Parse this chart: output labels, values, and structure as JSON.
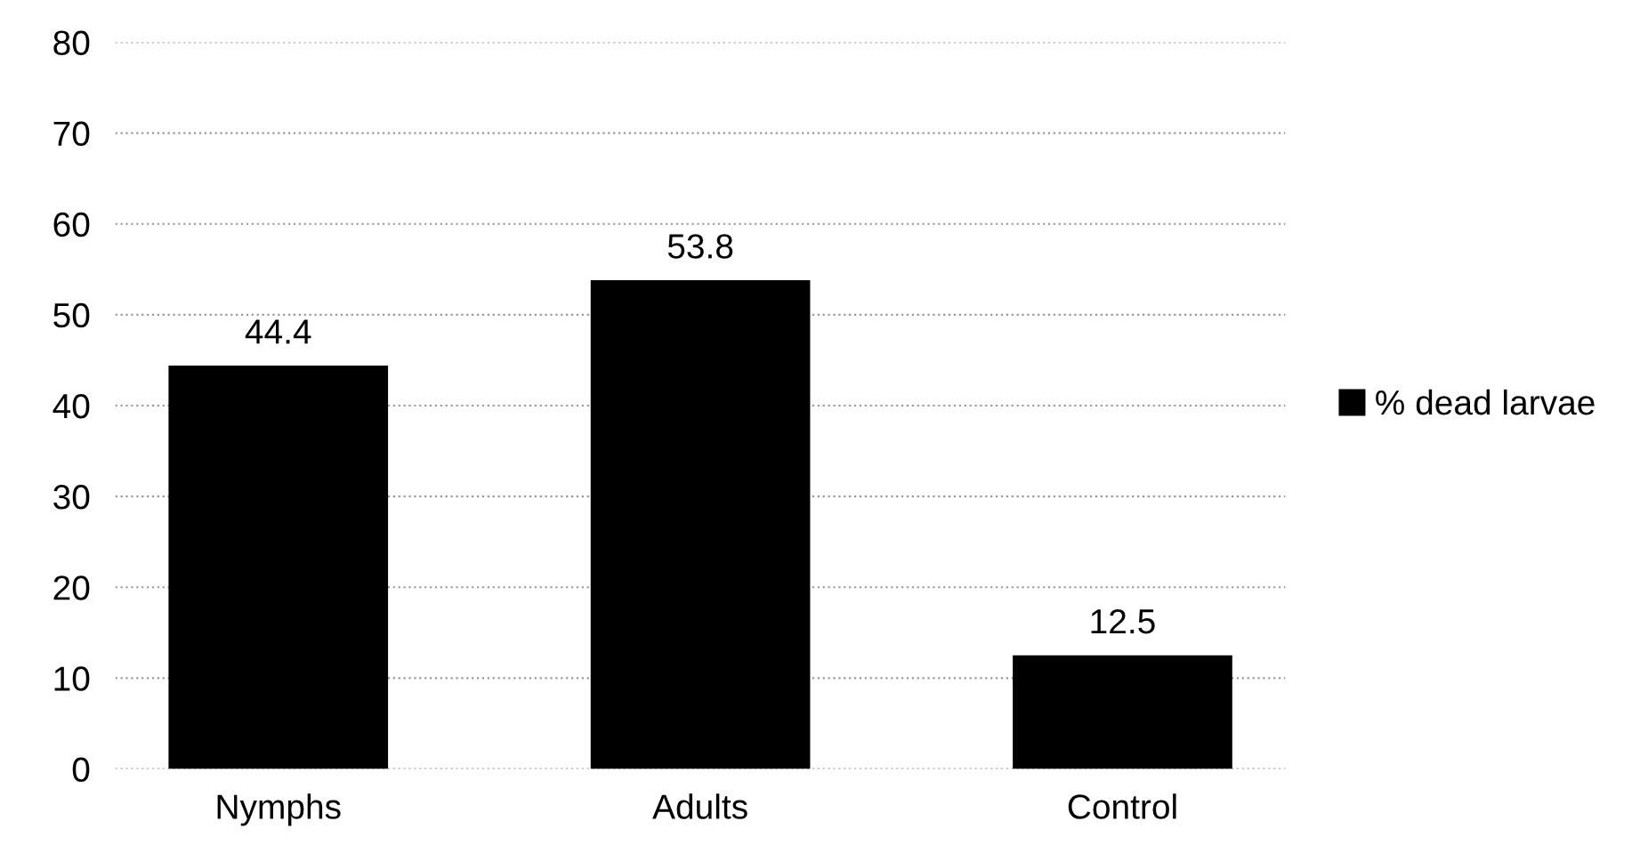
{
  "chart_data": {
    "type": "bar",
    "categories": [
      "Nymphs",
      "Adults",
      "Control"
    ],
    "series": [
      {
        "name": "% dead larvae",
        "color": "#000000",
        "values": [
          44.4,
          53.8,
          12.5
        ]
      }
    ],
    "ylim": [
      0,
      80
    ],
    "yticks": [
      0,
      10,
      20,
      30,
      40,
      50,
      60,
      70,
      80
    ],
    "grid": "y",
    "legend": "right",
    "data_labels": true
  }
}
